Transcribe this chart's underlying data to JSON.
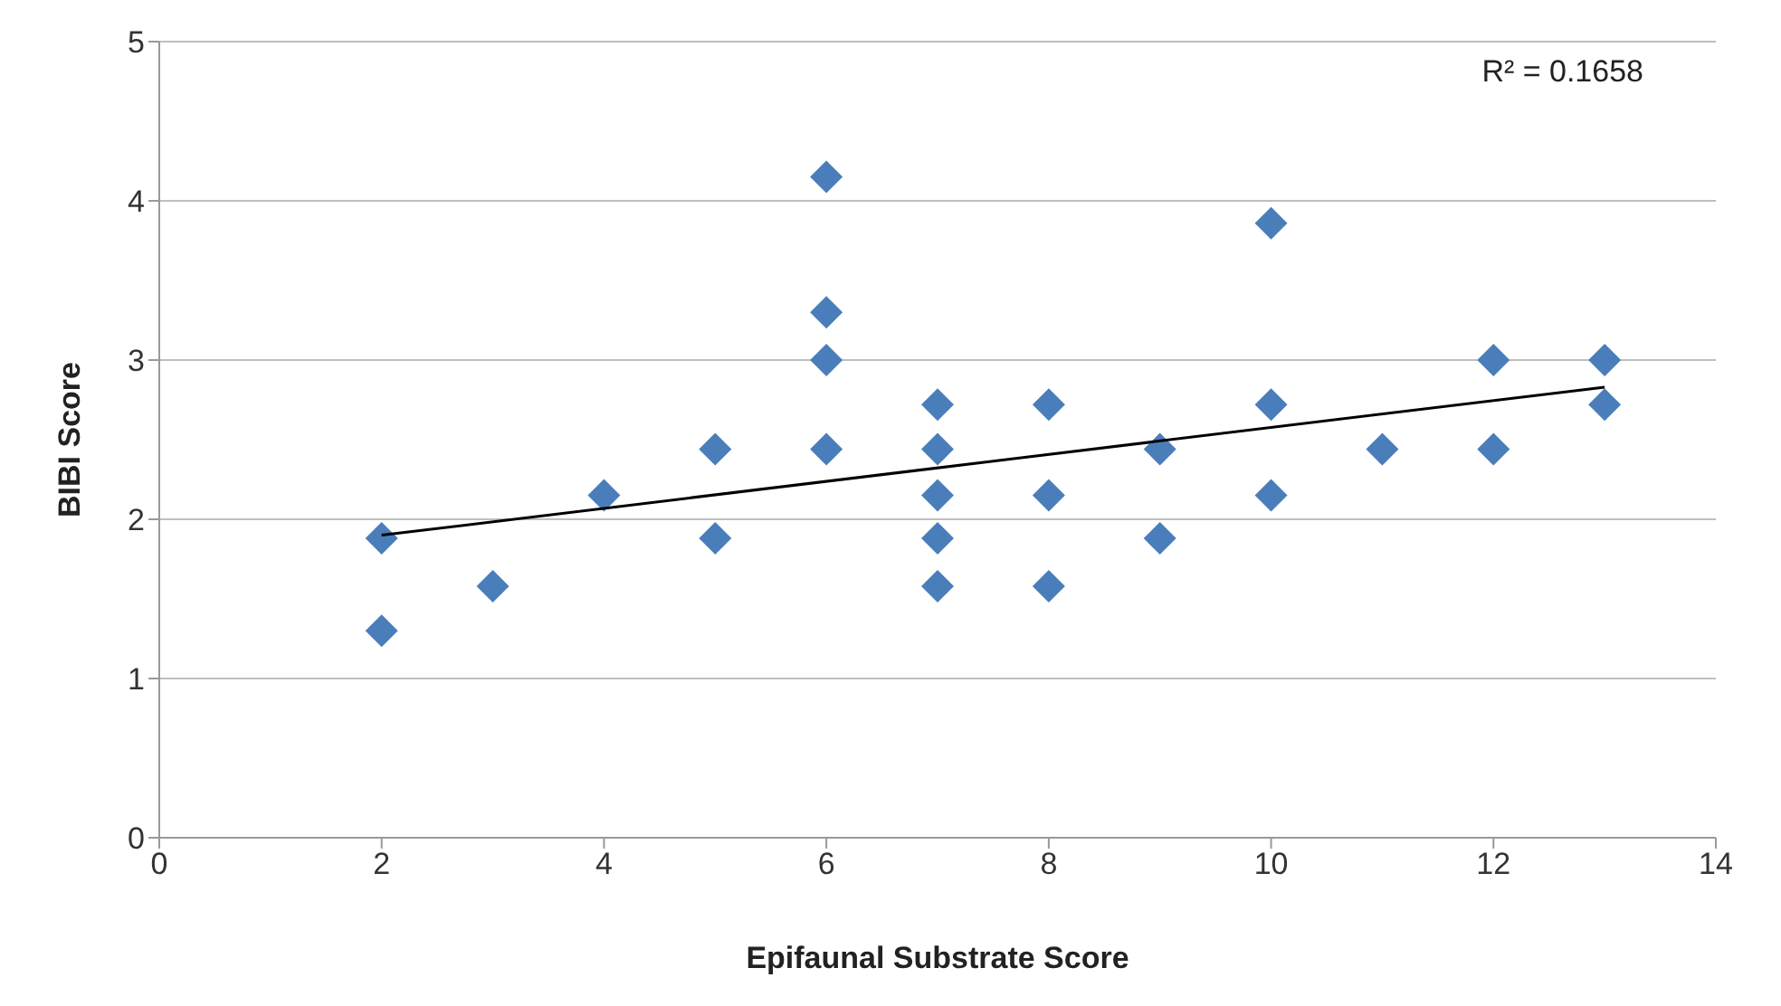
{
  "chart_data": {
    "type": "scatter",
    "xlabel": "Epifaunal Substrate Score",
    "ylabel": "BIBI Score",
    "xlim": [
      0,
      14
    ],
    "xticks": [
      0,
      2,
      4,
      6,
      8,
      10,
      12,
      14
    ],
    "ylim": [
      0,
      5
    ],
    "yticks": [
      0,
      1,
      2,
      3,
      4,
      5
    ],
    "grid": "y",
    "marker": "diamond",
    "annotations": [
      "R² = 0.1658"
    ],
    "series": [
      {
        "color": "#4a7ebb",
        "x": [
          2,
          2,
          3,
          4,
          5,
          5,
          6,
          6,
          6,
          6,
          7,
          7,
          7,
          7,
          7,
          8,
          8,
          8,
          9,
          9,
          10,
          10,
          10,
          11,
          12,
          12,
          13,
          13
        ],
        "values": [
          1.88,
          1.3,
          1.58,
          2.15,
          2.44,
          1.88,
          4.15,
          3.3,
          3.0,
          2.44,
          2.72,
          2.44,
          2.15,
          1.88,
          1.58,
          2.72,
          2.15,
          1.58,
          2.44,
          1.88,
          3.86,
          2.72,
          2.15,
          2.44,
          3.0,
          2.44,
          3.0,
          2.72
        ]
      },
      {
        "type": "line",
        "color": "#000000",
        "marker": "none",
        "line_style": "solid",
        "x": [
          2,
          13
        ],
        "values": [
          1.9,
          2.83
        ]
      }
    ]
  }
}
